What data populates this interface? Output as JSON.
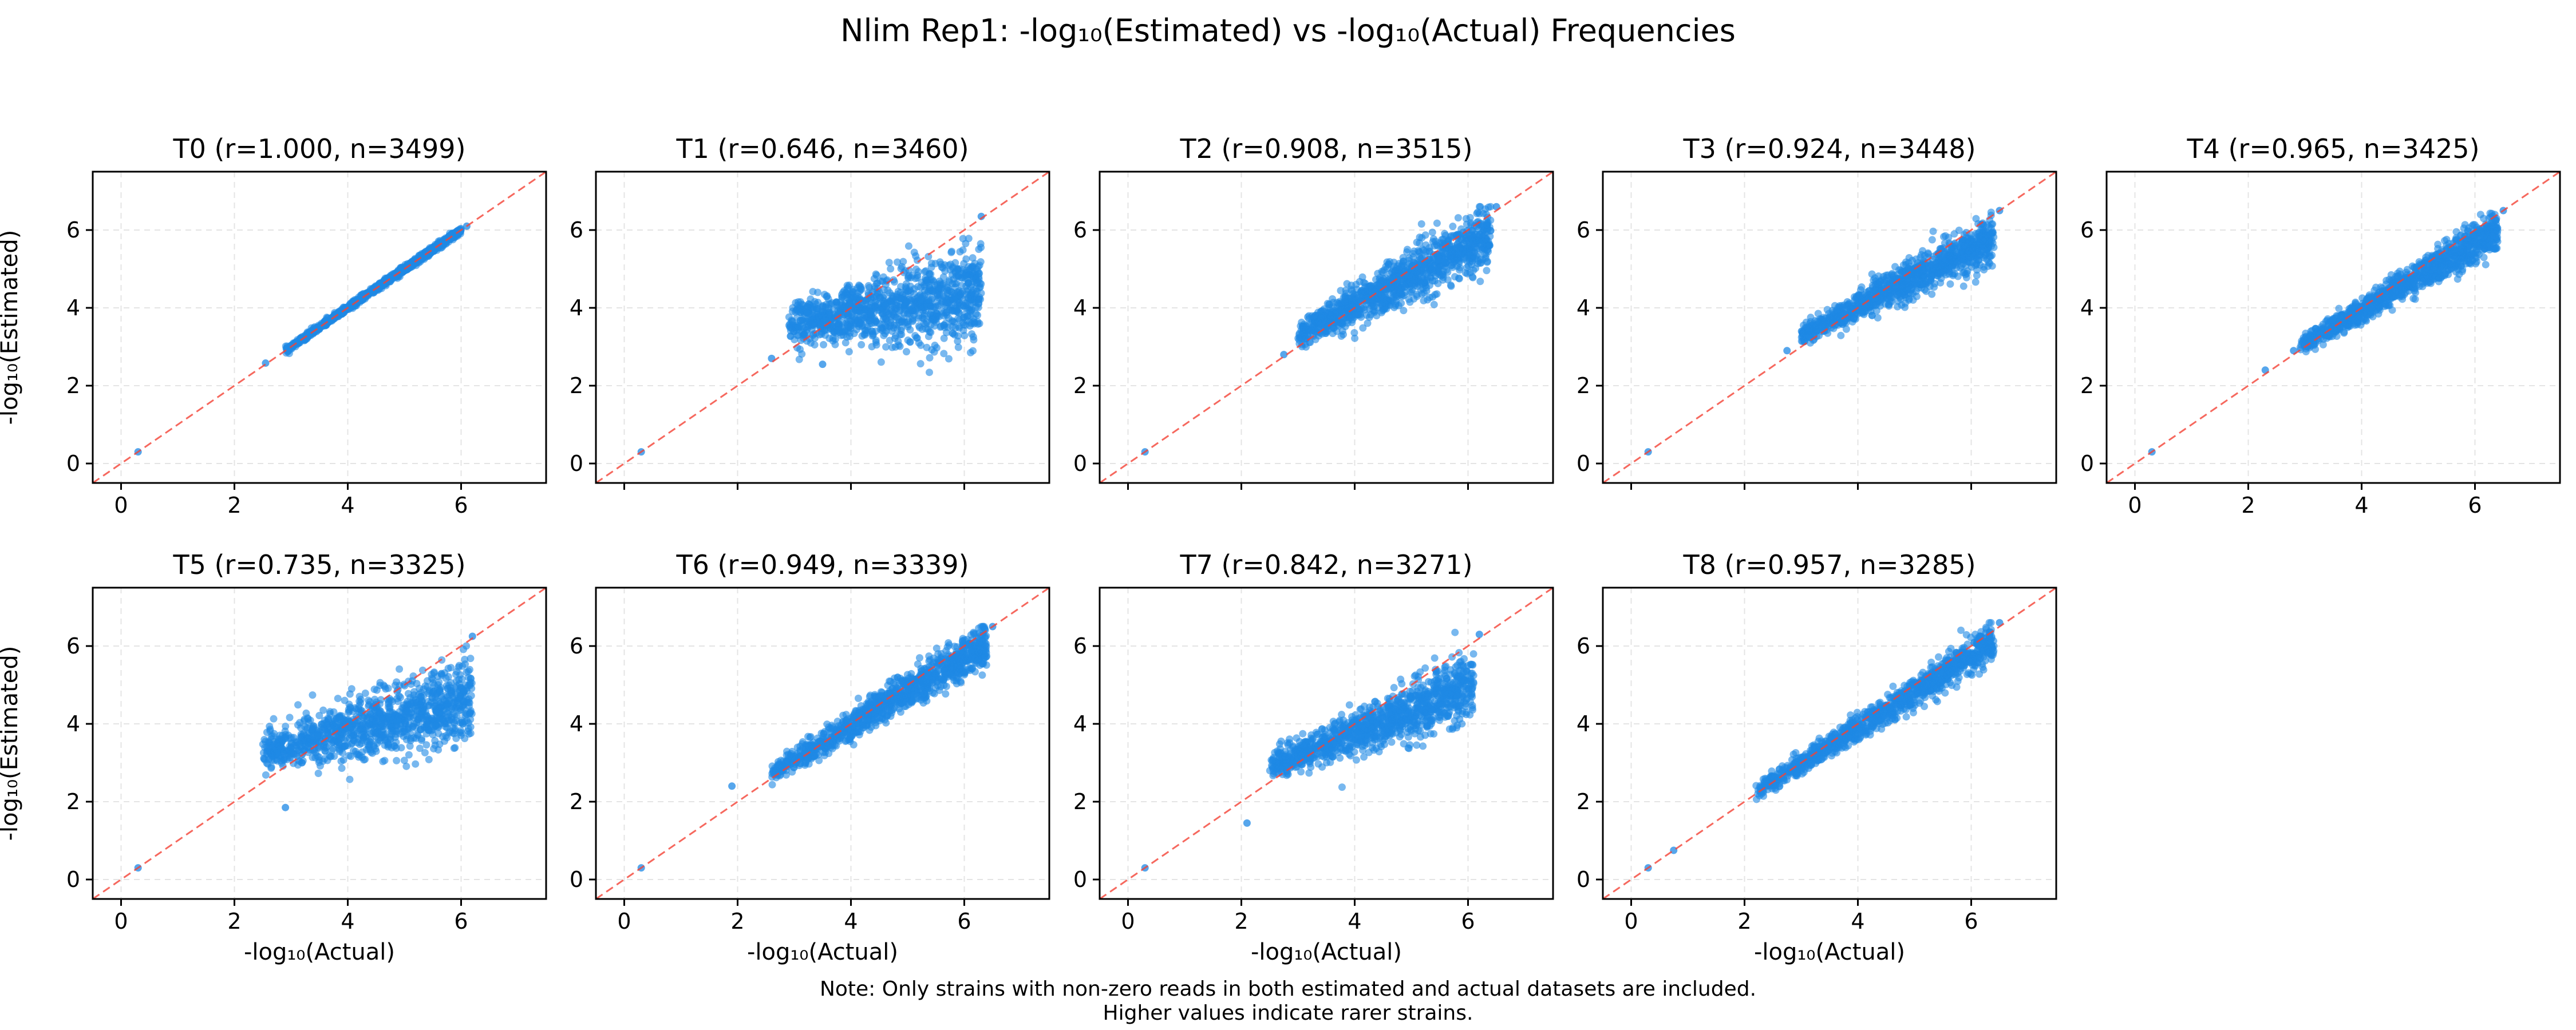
{
  "figure": {
    "title": "Nlim Rep1: -log₁₀(Estimated) vs -log₁₀(Actual) Frequencies",
    "note_line1": "Note: Only strains with non-zero reads in both estimated and actual datasets are included.",
    "note_line2": "Higher values indicate rarer strains."
  },
  "colors": {
    "points": "#1e88e5",
    "diagonal": "#f44336",
    "grid": "#d9d9d9",
    "axes": "#000000"
  },
  "chart_data": [
    {
      "type": "scatter",
      "title": "T0 (r=1.000, n=3499)",
      "r": 1.0,
      "n": 3499,
      "xlabel": "",
      "ylabel": "-log₁₀(Estimated)",
      "xlim": [
        -0.5,
        7.5
      ],
      "ylim": [
        -0.5,
        7.5
      ],
      "xticks": [
        "0",
        "2",
        "4",
        "6"
      ],
      "yticks": [
        "0",
        "2",
        "4",
        "6"
      ],
      "grid": true,
      "reference_line": "y = x",
      "outliers": [
        [
          0.3,
          0.3
        ],
        [
          2.55,
          2.58
        ],
        [
          6.1,
          6.1
        ]
      ],
      "cloud": {
        "x_range": [
          2.9,
          6.0
        ],
        "y_spread": 0.04,
        "trend": "y=x"
      }
    },
    {
      "type": "scatter",
      "title": "T1 (r=0.646, n=3460)",
      "r": 0.646,
      "n": 3460,
      "xlabel": "",
      "ylabel": "",
      "xlim": [
        -0.5,
        7.5
      ],
      "ylim": [
        -0.5,
        7.5
      ],
      "xticks": [],
      "yticks": [
        "0",
        "2",
        "4",
        "6"
      ],
      "grid": true,
      "reference_line": "y = x",
      "outliers": [
        [
          0.3,
          0.3
        ],
        [
          2.6,
          2.7
        ],
        [
          3.5,
          2.55
        ],
        [
          6.3,
          6.35
        ]
      ],
      "cloud": {
        "x_range": [
          2.9,
          6.3
        ],
        "y_center": [
          3.6,
          4.3
        ],
        "y_spread": 0.45,
        "cap": 6.2
      }
    },
    {
      "type": "scatter",
      "title": "T2 (r=0.908, n=3515)",
      "r": 0.908,
      "n": 3515,
      "xlabel": "",
      "ylabel": "",
      "xlim": [
        -0.5,
        7.5
      ],
      "ylim": [
        -0.5,
        7.5
      ],
      "xticks": [],
      "yticks": [
        "0",
        "2",
        "4",
        "6"
      ],
      "grid": true,
      "reference_line": "y = x",
      "outliers": [
        [
          0.3,
          0.3
        ],
        [
          2.75,
          2.8
        ],
        [
          6.5,
          6.6
        ]
      ],
      "cloud": {
        "x_range": [
          3.0,
          6.4
        ],
        "y_center": [
          3.3,
          5.9
        ],
        "y_spread": 0.3,
        "cap": 6.6
      }
    },
    {
      "type": "scatter",
      "title": "T3 (r=0.924, n=3448)",
      "r": 0.924,
      "n": 3448,
      "xlabel": "",
      "ylabel": "",
      "xlim": [
        -0.5,
        7.5
      ],
      "ylim": [
        -0.5,
        7.5
      ],
      "xticks": [],
      "yticks": [
        "0",
        "2",
        "4",
        "6"
      ],
      "grid": true,
      "reference_line": "y = x",
      "outliers": [
        [
          0.3,
          0.3
        ],
        [
          2.75,
          2.9
        ],
        [
          6.5,
          6.5
        ]
      ],
      "cloud": {
        "x_range": [
          3.0,
          6.4
        ],
        "y_center": [
          3.3,
          5.8
        ],
        "y_spread": 0.22,
        "cap": 6.5
      }
    },
    {
      "type": "scatter",
      "title": "T4 (r=0.965, n=3425)",
      "r": 0.965,
      "n": 3425,
      "xlabel": "",
      "ylabel": "",
      "xlim": [
        -0.5,
        7.5
      ],
      "ylim": [
        -0.5,
        7.5
      ],
      "xticks": [
        "0",
        "2",
        "4",
        "6"
      ],
      "yticks": [
        "0",
        "2",
        "4",
        "6"
      ],
      "grid": true,
      "reference_line": "y = x",
      "outliers": [
        [
          0.3,
          0.3
        ],
        [
          2.3,
          2.4
        ],
        [
          2.8,
          2.9
        ],
        [
          6.5,
          6.5
        ]
      ],
      "cloud": {
        "x_range": [
          2.9,
          6.4
        ],
        "y_center": [
          3.0,
          6.0
        ],
        "y_spread": 0.18,
        "cap": 6.5
      }
    },
    {
      "type": "scatter",
      "title": "T5 (r=0.735, n=3325)",
      "r": 0.735,
      "n": 3325,
      "xlabel": "-log₁₀(Actual)",
      "ylabel": "-log₁₀(Estimated)",
      "xlim": [
        -0.5,
        7.5
      ],
      "ylim": [
        -0.5,
        7.5
      ],
      "xticks": [
        "0",
        "2",
        "4",
        "6"
      ],
      "yticks": [
        "0",
        "2",
        "4",
        "6"
      ],
      "grid": true,
      "reference_line": "y = x",
      "outliers": [
        [
          0.3,
          0.3
        ],
        [
          2.9,
          1.85
        ],
        [
          6.2,
          6.25
        ]
      ],
      "cloud": {
        "x_range": [
          2.5,
          6.2
        ],
        "y_center": [
          3.3,
          4.6
        ],
        "y_spread": 0.4,
        "cap": 6.25
      }
    },
    {
      "type": "scatter",
      "title": "T6 (r=0.949, n=3339)",
      "r": 0.949,
      "n": 3339,
      "xlabel": "-log₁₀(Actual)",
      "ylabel": "",
      "xlim": [
        -0.5,
        7.5
      ],
      "ylim": [
        -0.5,
        7.5
      ],
      "xticks": [
        "0",
        "2",
        "4",
        "6"
      ],
      "yticks": [
        "0",
        "2",
        "4",
        "6"
      ],
      "grid": true,
      "reference_line": "y = x",
      "outliers": [
        [
          0.3,
          0.3
        ],
        [
          1.9,
          2.4
        ],
        [
          6.5,
          6.5
        ]
      ],
      "cloud": {
        "x_range": [
          2.6,
          6.4
        ],
        "y_center": [
          2.7,
          6.1
        ],
        "y_spread": 0.2,
        "cap": 6.5
      }
    },
    {
      "type": "scatter",
      "title": "T7 (r=0.842, n=3271)",
      "r": 0.842,
      "n": 3271,
      "xlabel": "-log₁₀(Actual)",
      "ylabel": "",
      "xlim": [
        -0.5,
        7.5
      ],
      "ylim": [
        -0.5,
        7.5
      ],
      "xticks": [
        "0",
        "2",
        "4",
        "6"
      ],
      "yticks": [
        "0",
        "2",
        "4",
        "6"
      ],
      "grid": true,
      "reference_line": "y = x",
      "outliers": [
        [
          0.3,
          0.3
        ],
        [
          2.1,
          1.45
        ],
        [
          6.2,
          6.3
        ]
      ],
      "cloud": {
        "x_range": [
          2.5,
          6.1
        ],
        "y_center": [
          2.9,
          5.0
        ],
        "y_spread": 0.3,
        "cap": 6.35
      }
    },
    {
      "type": "scatter",
      "title": "T8 (r=0.957, n=3285)",
      "r": 0.957,
      "n": 3285,
      "xlabel": "-log₁₀(Actual)",
      "ylabel": "",
      "xlim": [
        -0.5,
        7.5
      ],
      "ylim": [
        -0.5,
        7.5
      ],
      "xticks": [
        "0",
        "2",
        "4",
        "6"
      ],
      "yticks": [
        "0",
        "2",
        "4",
        "6"
      ],
      "grid": true,
      "reference_line": "y = x",
      "outliers": [
        [
          0.3,
          0.3
        ],
        [
          0.75,
          0.75
        ],
        [
          6.5,
          6.6
        ]
      ],
      "cloud": {
        "x_range": [
          2.2,
          6.4
        ],
        "y_center": [
          2.25,
          6.1
        ],
        "y_spread": 0.17,
        "cap": 6.6
      }
    }
  ]
}
